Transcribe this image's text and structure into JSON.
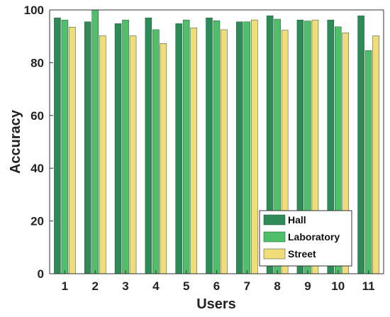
{
  "chart_data": {
    "type": "bar",
    "xlabel": "Users",
    "ylabel": "Accuracy",
    "categories": [
      "1",
      "2",
      "3",
      "4",
      "5",
      "6",
      "7",
      "8",
      "9",
      "10",
      "11"
    ],
    "ylim": [
      0,
      100
    ],
    "yticks": [
      0,
      20,
      40,
      60,
      80,
      100
    ],
    "grid": false,
    "legend_position": "bottom-right",
    "series": [
      {
        "name": "Hall",
        "color": "#2e8b57",
        "values": [
          97,
          95.5,
          94.8,
          97,
          94.8,
          97,
          95.5,
          97.8,
          96.2,
          96.2,
          97.8
        ]
      },
      {
        "name": "Laboratory",
        "color": "#4fbf6a",
        "values": [
          96.2,
          100,
          96.2,
          92.5,
          96.2,
          95.9,
          95.5,
          96.5,
          95.8,
          93.6,
          84.6
        ]
      },
      {
        "name": "Street",
        "color": "#f0dc78",
        "values": [
          93.5,
          90.2,
          90.2,
          87.3,
          93.2,
          92.5,
          96.2,
          92.3,
          96.2,
          91.3,
          90.2
        ]
      }
    ]
  }
}
